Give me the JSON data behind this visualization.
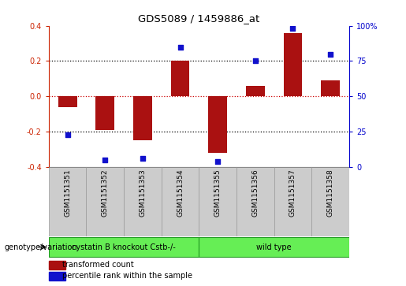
{
  "title": "GDS5089 / 1459886_at",
  "samples": [
    "GSM1151351",
    "GSM1151352",
    "GSM1151353",
    "GSM1151354",
    "GSM1151355",
    "GSM1151356",
    "GSM1151357",
    "GSM1151358"
  ],
  "transformed_count": [
    -0.06,
    -0.19,
    -0.25,
    0.2,
    -0.32,
    0.06,
    0.36,
    0.09
  ],
  "percentile_rank": [
    23,
    5,
    6,
    85,
    4,
    75,
    98,
    80
  ],
  "ylim_left": [
    -0.4,
    0.4
  ],
  "ylim_right": [
    0,
    100
  ],
  "yticks_left": [
    -0.4,
    -0.2,
    0.0,
    0.2,
    0.4
  ],
  "yticks_right": [
    0,
    25,
    50,
    75,
    100
  ],
  "yticklabels_right": [
    "0",
    "25",
    "50",
    "75",
    "100%"
  ],
  "bar_color": "#aa1111",
  "dot_color": "#1111cc",
  "zero_line_color": "#cc0000",
  "dotted_line_color": "#000000",
  "dotted_lines": [
    0.2,
    0.0,
    -0.2
  ],
  "group1_label": "cystatin B knockout Cstb-/-",
  "group2_label": "wild type",
  "group1_count": 4,
  "group2_count": 4,
  "group_color": "#66ee55",
  "group_border_color": "#229922",
  "xtick_bg_color": "#cccccc",
  "xtick_border_color": "#999999",
  "annotation_label": "genotype/variation",
  "legend_bar_label": "transformed count",
  "legend_dot_label": "percentile rank within the sample",
  "background_color": "#ffffff",
  "plot_bg_color": "#ffffff"
}
